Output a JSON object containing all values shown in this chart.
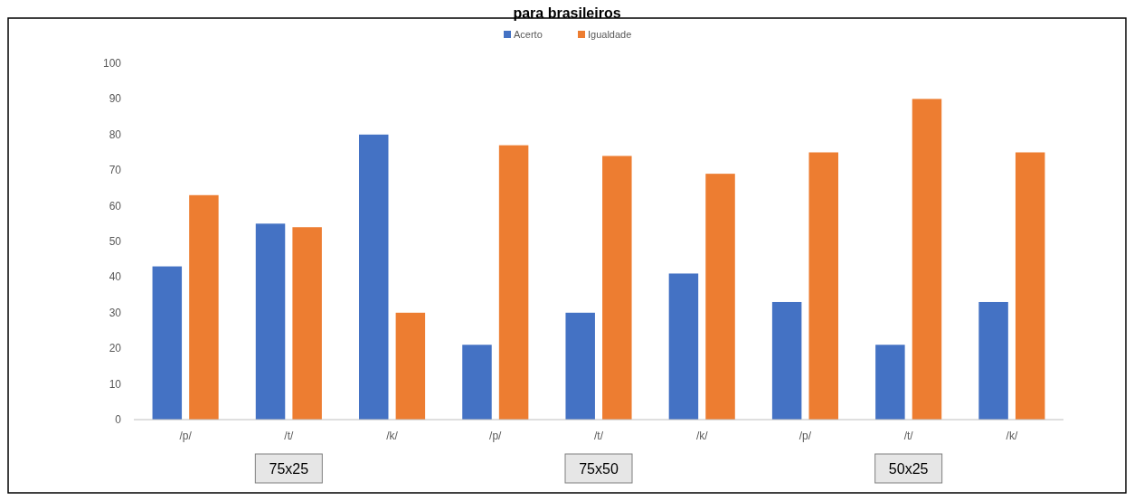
{
  "chart_data": {
    "type": "bar",
    "title": "para brasileiros",
    "categories": [
      "/p/",
      "/t/",
      "/k/",
      "/p/",
      "/t/",
      "/k/",
      "/p/",
      "/t/",
      "/k/"
    ],
    "series": [
      {
        "name": "Acerto",
        "color": "#4472c4",
        "values": [
          43,
          55,
          80,
          21,
          30,
          41,
          33,
          21,
          33
        ]
      },
      {
        "name": "Igualdade",
        "color": "#ed7d31",
        "values": [
          63,
          54,
          30,
          77,
          74,
          69,
          75,
          90,
          75
        ]
      }
    ],
    "ylim": [
      0,
      100
    ],
    "yticks": [
      0,
      10,
      20,
      30,
      40,
      50,
      60,
      70,
      80,
      90,
      100
    ],
    "grid": false,
    "legend": "top",
    "annotations": [
      "75x25",
      "75x50",
      "50x25"
    ]
  }
}
